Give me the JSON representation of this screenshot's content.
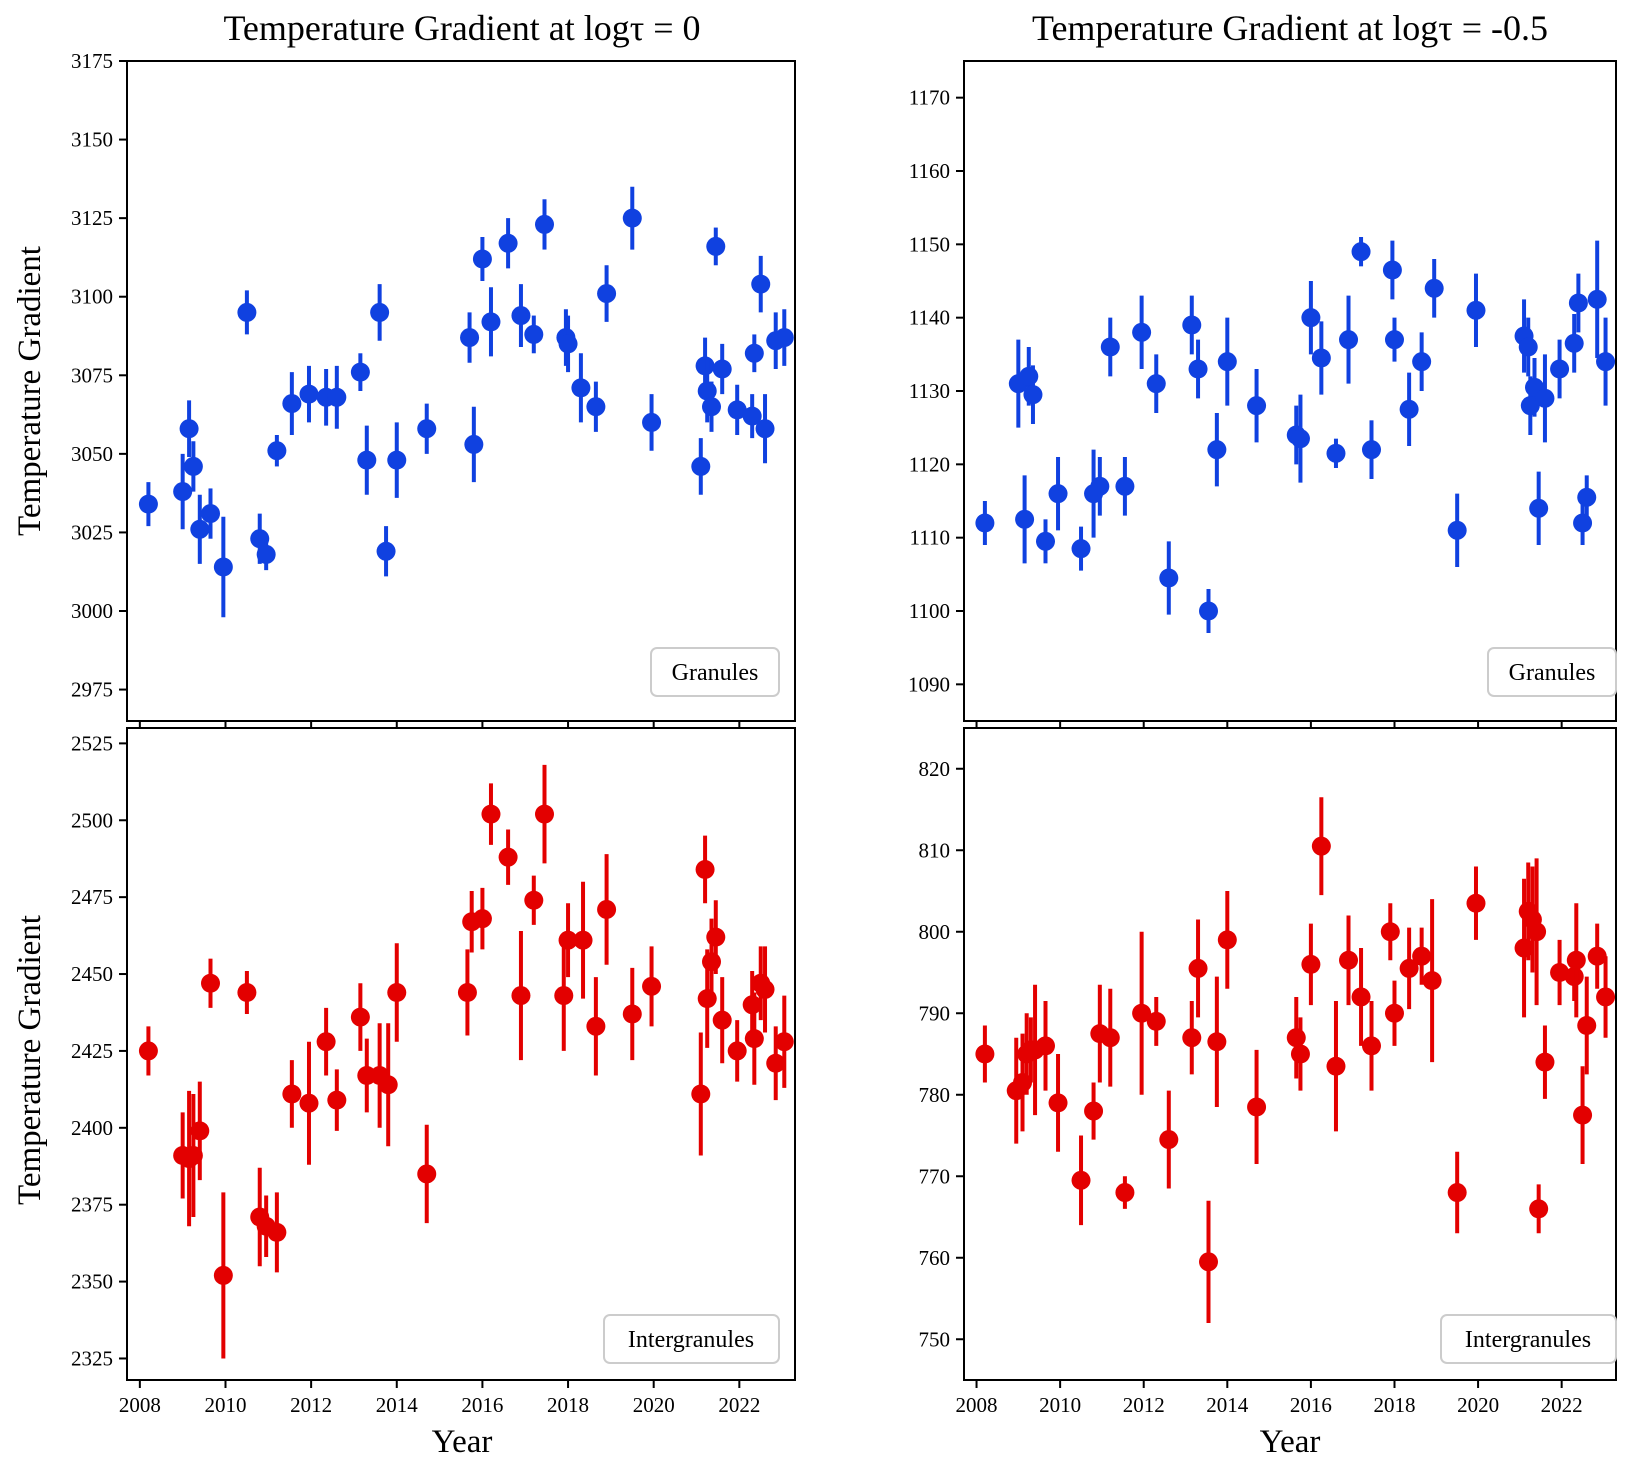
{
  "chart_data": [
    {
      "panel": "top-left",
      "type": "scatter",
      "title": "Temperature Gradient at logτ = 0",
      "xlabel": "",
      "ylabel": "Temperature Gradient",
      "xlim": [
        2007.7,
        2023.3
      ],
      "ylim": [
        2965,
        3175
      ],
      "xticks": [
        2008,
        2010,
        2012,
        2014,
        2016,
        2018,
        2020,
        2022
      ],
      "xtick_labels": [],
      "yticks": [
        2975,
        3000,
        3025,
        3050,
        3075,
        3100,
        3125,
        3150,
        3175
      ],
      "legend": "Granules",
      "legend_position": "lower right",
      "color": "#1041e0",
      "grid": false,
      "points": [
        {
          "x": 2008.2,
          "y": 3034,
          "err": 7
        },
        {
          "x": 2009.0,
          "y": 3038,
          "err": 12
        },
        {
          "x": 2009.15,
          "y": 3058,
          "err": 9
        },
        {
          "x": 2009.25,
          "y": 3046,
          "err": 8
        },
        {
          "x": 2009.4,
          "y": 3026,
          "err": 11
        },
        {
          "x": 2009.65,
          "y": 3031,
          "err": 8
        },
        {
          "x": 2009.95,
          "y": 3014,
          "err": 16
        },
        {
          "x": 2010.5,
          "y": 3095,
          "err": 7
        },
        {
          "x": 2010.8,
          "y": 3023,
          "err": 8
        },
        {
          "x": 2010.95,
          "y": 3018,
          "err": 5
        },
        {
          "x": 2011.2,
          "y": 3051,
          "err": 5
        },
        {
          "x": 2011.55,
          "y": 3066,
          "err": 10
        },
        {
          "x": 2011.95,
          "y": 3069,
          "err": 9
        },
        {
          "x": 2012.35,
          "y": 3068,
          "err": 9
        },
        {
          "x": 2012.6,
          "y": 3068,
          "err": 10
        },
        {
          "x": 2013.15,
          "y": 3076,
          "err": 6
        },
        {
          "x": 2013.3,
          "y": 3048,
          "err": 11
        },
        {
          "x": 2013.6,
          "y": 3095,
          "err": 9
        },
        {
          "x": 2013.75,
          "y": 3019,
          "err": 8
        },
        {
          "x": 2014.0,
          "y": 3048,
          "err": 12
        },
        {
          "x": 2014.7,
          "y": 3058,
          "err": 8
        },
        {
          "x": 2015.7,
          "y": 3087,
          "err": 8
        },
        {
          "x": 2015.8,
          "y": 3053,
          "err": 12
        },
        {
          "x": 2016.0,
          "y": 3112,
          "err": 7
        },
        {
          "x": 2016.2,
          "y": 3092,
          "err": 11
        },
        {
          "x": 2016.6,
          "y": 3117,
          "err": 8
        },
        {
          "x": 2016.9,
          "y": 3094,
          "err": 10
        },
        {
          "x": 2017.2,
          "y": 3088,
          "err": 6
        },
        {
          "x": 2017.45,
          "y": 3123,
          "err": 8
        },
        {
          "x": 2017.95,
          "y": 3087,
          "err": 9
        },
        {
          "x": 2018.0,
          "y": 3085,
          "err": 9
        },
        {
          "x": 2018.3,
          "y": 3071,
          "err": 11
        },
        {
          "x": 2018.65,
          "y": 3065,
          "err": 8
        },
        {
          "x": 2018.9,
          "y": 3101,
          "err": 9
        },
        {
          "x": 2019.5,
          "y": 3125,
          "err": 10
        },
        {
          "x": 2019.95,
          "y": 3060,
          "err": 9
        },
        {
          "x": 2021.1,
          "y": 3046,
          "err": 9
        },
        {
          "x": 2021.2,
          "y": 3078,
          "err": 9
        },
        {
          "x": 2021.25,
          "y": 3070,
          "err": 10
        },
        {
          "x": 2021.35,
          "y": 3065,
          "err": 8
        },
        {
          "x": 2021.45,
          "y": 3116,
          "err": 6
        },
        {
          "x": 2021.6,
          "y": 3077,
          "err": 8
        },
        {
          "x": 2021.95,
          "y": 3064,
          "err": 8
        },
        {
          "x": 2022.3,
          "y": 3062,
          "err": 7
        },
        {
          "x": 2022.35,
          "y": 3082,
          "err": 6
        },
        {
          "x": 2022.5,
          "y": 3104,
          "err": 9
        },
        {
          "x": 2022.6,
          "y": 3058,
          "err": 11
        },
        {
          "x": 2022.85,
          "y": 3086,
          "err": 9
        },
        {
          "x": 2023.05,
          "y": 3087,
          "err": 9
        }
      ]
    },
    {
      "panel": "top-right",
      "type": "scatter",
      "title": "Temperature Gradient at logτ = -0.5",
      "xlabel": "",
      "ylabel": "",
      "xlim": [
        2007.7,
        2023.3
      ],
      "ylim": [
        1085,
        1175
      ],
      "xticks": [
        2008,
        2010,
        2012,
        2014,
        2016,
        2018,
        2020,
        2022
      ],
      "xtick_labels": [],
      "yticks": [
        1090,
        1100,
        1110,
        1120,
        1130,
        1140,
        1150,
        1160,
        1170
      ],
      "legend": "Granules",
      "legend_position": "lower right",
      "color": "#1041e0",
      "grid": false,
      "points": [
        {
          "x": 2008.2,
          "y": 1112,
          "err": 3
        },
        {
          "x": 2009.0,
          "y": 1131,
          "err": 6
        },
        {
          "x": 2009.15,
          "y": 1112.5,
          "err": 6
        },
        {
          "x": 2009.25,
          "y": 1132,
          "err": 4
        },
        {
          "x": 2009.35,
          "y": 1129.5,
          "err": 4
        },
        {
          "x": 2009.65,
          "y": 1109.5,
          "err": 3
        },
        {
          "x": 2009.95,
          "y": 1116,
          "err": 5
        },
        {
          "x": 2010.5,
          "y": 1108.5,
          "err": 3
        },
        {
          "x": 2010.8,
          "y": 1116,
          "err": 6
        },
        {
          "x": 2010.95,
          "y": 1117,
          "err": 4
        },
        {
          "x": 2011.2,
          "y": 1136,
          "err": 4
        },
        {
          "x": 2011.55,
          "y": 1117,
          "err": 4
        },
        {
          "x": 2011.95,
          "y": 1138,
          "err": 5
        },
        {
          "x": 2012.3,
          "y": 1131,
          "err": 4
        },
        {
          "x": 2012.6,
          "y": 1104.5,
          "err": 5
        },
        {
          "x": 2013.15,
          "y": 1139,
          "err": 4
        },
        {
          "x": 2013.3,
          "y": 1133,
          "err": 4
        },
        {
          "x": 2013.55,
          "y": 1100,
          "err": 3
        },
        {
          "x": 2013.75,
          "y": 1122,
          "err": 5
        },
        {
          "x": 2014.0,
          "y": 1134,
          "err": 6
        },
        {
          "x": 2014.7,
          "y": 1128,
          "err": 5
        },
        {
          "x": 2015.65,
          "y": 1124,
          "err": 4
        },
        {
          "x": 2015.75,
          "y": 1123.5,
          "err": 6
        },
        {
          "x": 2016.0,
          "y": 1140,
          "err": 5
        },
        {
          "x": 2016.25,
          "y": 1134.5,
          "err": 5
        },
        {
          "x": 2016.6,
          "y": 1121.5,
          "err": 2
        },
        {
          "x": 2016.9,
          "y": 1137,
          "err": 6
        },
        {
          "x": 2017.2,
          "y": 1149,
          "err": 2
        },
        {
          "x": 2017.45,
          "y": 1122,
          "err": 4
        },
        {
          "x": 2017.95,
          "y": 1146.5,
          "err": 4
        },
        {
          "x": 2018.0,
          "y": 1137,
          "err": 3
        },
        {
          "x": 2018.35,
          "y": 1127.5,
          "err": 5
        },
        {
          "x": 2018.65,
          "y": 1134,
          "err": 4
        },
        {
          "x": 2018.95,
          "y": 1144,
          "err": 4
        },
        {
          "x": 2019.5,
          "y": 1111,
          "err": 5
        },
        {
          "x": 2019.95,
          "y": 1141,
          "err": 5
        },
        {
          "x": 2021.1,
          "y": 1137.5,
          "err": 5
        },
        {
          "x": 2021.2,
          "y": 1136,
          "err": 4
        },
        {
          "x": 2021.25,
          "y": 1128,
          "err": 4
        },
        {
          "x": 2021.35,
          "y": 1130.5,
          "err": 4
        },
        {
          "x": 2021.45,
          "y": 1114,
          "err": 5
        },
        {
          "x": 2021.6,
          "y": 1129,
          "err": 6
        },
        {
          "x": 2021.95,
          "y": 1133,
          "err": 4
        },
        {
          "x": 2022.3,
          "y": 1136.5,
          "err": 4
        },
        {
          "x": 2022.4,
          "y": 1142,
          "err": 4
        },
        {
          "x": 2022.5,
          "y": 1112,
          "err": 3
        },
        {
          "x": 2022.6,
          "y": 1115.5,
          "err": 3
        },
        {
          "x": 2022.85,
          "y": 1142.5,
          "err": 8
        },
        {
          "x": 2023.05,
          "y": 1134,
          "err": 6
        }
      ]
    },
    {
      "panel": "bottom-left",
      "type": "scatter",
      "title": "",
      "xlabel": "Year",
      "ylabel": "Temperature Gradient",
      "xlim": [
        2007.7,
        2023.3
      ],
      "ylim": [
        2318,
        2530
      ],
      "xticks": [
        2008,
        2010,
        2012,
        2014,
        2016,
        2018,
        2020,
        2022
      ],
      "xtick_labels": [
        "2008",
        "2010",
        "2012",
        "2014",
        "2016",
        "2018",
        "2020",
        "2022"
      ],
      "yticks": [
        2325,
        2350,
        2375,
        2400,
        2425,
        2450,
        2475,
        2500,
        2525
      ],
      "legend": "Intergranules",
      "legend_position": "lower right",
      "color": "#e30000",
      "grid": false,
      "points": [
        {
          "x": 2008.2,
          "y": 2425,
          "err": 8
        },
        {
          "x": 2009.0,
          "y": 2391,
          "err": 14
        },
        {
          "x": 2009.15,
          "y": 2390,
          "err": 22
        },
        {
          "x": 2009.25,
          "y": 2391,
          "err": 20
        },
        {
          "x": 2009.4,
          "y": 2399,
          "err": 16
        },
        {
          "x": 2009.65,
          "y": 2447,
          "err": 8
        },
        {
          "x": 2009.95,
          "y": 2352,
          "err": 27
        },
        {
          "x": 2010.5,
          "y": 2444,
          "err": 7
        },
        {
          "x": 2010.8,
          "y": 2371,
          "err": 16
        },
        {
          "x": 2010.95,
          "y": 2368,
          "err": 10
        },
        {
          "x": 2011.2,
          "y": 2366,
          "err": 13
        },
        {
          "x": 2011.55,
          "y": 2411,
          "err": 11
        },
        {
          "x": 2011.95,
          "y": 2408,
          "err": 20
        },
        {
          "x": 2012.35,
          "y": 2428,
          "err": 11
        },
        {
          "x": 2012.6,
          "y": 2409,
          "err": 10
        },
        {
          "x": 2013.15,
          "y": 2436,
          "err": 11
        },
        {
          "x": 2013.3,
          "y": 2417,
          "err": 12
        },
        {
          "x": 2013.6,
          "y": 2417,
          "err": 17
        },
        {
          "x": 2013.8,
          "y": 2414,
          "err": 20
        },
        {
          "x": 2014.0,
          "y": 2444,
          "err": 16
        },
        {
          "x": 2014.7,
          "y": 2385,
          "err": 16
        },
        {
          "x": 2015.65,
          "y": 2444,
          "err": 14
        },
        {
          "x": 2015.75,
          "y": 2467,
          "err": 10
        },
        {
          "x": 2016.0,
          "y": 2468,
          "err": 10
        },
        {
          "x": 2016.2,
          "y": 2502,
          "err": 10
        },
        {
          "x": 2016.6,
          "y": 2488,
          "err": 9
        },
        {
          "x": 2016.9,
          "y": 2443,
          "err": 21
        },
        {
          "x": 2017.2,
          "y": 2474,
          "err": 8
        },
        {
          "x": 2017.45,
          "y": 2502,
          "err": 16
        },
        {
          "x": 2017.9,
          "y": 2443,
          "err": 18
        },
        {
          "x": 2018.0,
          "y": 2461,
          "err": 12
        },
        {
          "x": 2018.35,
          "y": 2461,
          "err": 19
        },
        {
          "x": 2018.65,
          "y": 2433,
          "err": 16
        },
        {
          "x": 2018.9,
          "y": 2471,
          "err": 18
        },
        {
          "x": 2019.5,
          "y": 2437,
          "err": 15
        },
        {
          "x": 2019.95,
          "y": 2446,
          "err": 13
        },
        {
          "x": 2021.1,
          "y": 2411,
          "err": 20
        },
        {
          "x": 2021.2,
          "y": 2484,
          "err": 11
        },
        {
          "x": 2021.25,
          "y": 2442,
          "err": 16
        },
        {
          "x": 2021.35,
          "y": 2454,
          "err": 14
        },
        {
          "x": 2021.45,
          "y": 2462,
          "err": 12
        },
        {
          "x": 2021.6,
          "y": 2435,
          "err": 14
        },
        {
          "x": 2021.95,
          "y": 2425,
          "err": 10
        },
        {
          "x": 2022.3,
          "y": 2440,
          "err": 11
        },
        {
          "x": 2022.35,
          "y": 2429,
          "err": 15
        },
        {
          "x": 2022.5,
          "y": 2447,
          "err": 12
        },
        {
          "x": 2022.6,
          "y": 2445,
          "err": 14
        },
        {
          "x": 2022.85,
          "y": 2421,
          "err": 12
        },
        {
          "x": 2023.05,
          "y": 2428,
          "err": 15
        }
      ]
    },
    {
      "panel": "bottom-right",
      "type": "scatter",
      "title": "",
      "xlabel": "Year",
      "ylabel": "",
      "xlim": [
        2007.7,
        2023.3
      ],
      "ylim": [
        745,
        825
      ],
      "xticks": [
        2008,
        2010,
        2012,
        2014,
        2016,
        2018,
        2020,
        2022
      ],
      "xtick_labels": [
        "2008",
        "2010",
        "2012",
        "2014",
        "2016",
        "2018",
        "2020",
        "2022"
      ],
      "yticks": [
        750,
        760,
        770,
        780,
        790,
        800,
        810,
        820
      ],
      "legend": "Intergranules",
      "legend_position": "lower right",
      "color": "#e30000",
      "grid": false,
      "points": [
        {
          "x": 2008.2,
          "y": 785,
          "err": 3.5
        },
        {
          "x": 2008.95,
          "y": 780.5,
          "err": 6.5
        },
        {
          "x": 2009.1,
          "y": 781.5,
          "err": 6
        },
        {
          "x": 2009.2,
          "y": 785,
          "err": 5
        },
        {
          "x": 2009.3,
          "y": 785.5,
          "err": 4
        },
        {
          "x": 2009.4,
          "y": 785.5,
          "err": 8
        },
        {
          "x": 2009.65,
          "y": 786,
          "err": 5.5
        },
        {
          "x": 2009.95,
          "y": 779,
          "err": 6
        },
        {
          "x": 2010.5,
          "y": 769.5,
          "err": 5.5
        },
        {
          "x": 2010.8,
          "y": 778,
          "err": 3.5
        },
        {
          "x": 2010.95,
          "y": 787.5,
          "err": 6
        },
        {
          "x": 2011.2,
          "y": 787,
          "err": 6
        },
        {
          "x": 2011.55,
          "y": 768,
          "err": 2
        },
        {
          "x": 2011.95,
          "y": 790,
          "err": 10
        },
        {
          "x": 2012.3,
          "y": 789,
          "err": 3
        },
        {
          "x": 2012.6,
          "y": 774.5,
          "err": 6
        },
        {
          "x": 2013.15,
          "y": 787,
          "err": 4.5
        },
        {
          "x": 2013.3,
          "y": 795.5,
          "err": 6
        },
        {
          "x": 2013.55,
          "y": 759.5,
          "err": 7.5
        },
        {
          "x": 2013.75,
          "y": 786.5,
          "err": 8
        },
        {
          "x": 2014.0,
          "y": 799,
          "err": 6
        },
        {
          "x": 2014.7,
          "y": 778.5,
          "err": 7
        },
        {
          "x": 2015.65,
          "y": 787,
          "err": 5
        },
        {
          "x": 2015.75,
          "y": 785,
          "err": 4.5
        },
        {
          "x": 2016.0,
          "y": 796,
          "err": 5
        },
        {
          "x": 2016.25,
          "y": 810.5,
          "err": 6
        },
        {
          "x": 2016.6,
          "y": 783.5,
          "err": 8
        },
        {
          "x": 2016.9,
          "y": 796.5,
          "err": 5.5
        },
        {
          "x": 2017.2,
          "y": 792,
          "err": 6
        },
        {
          "x": 2017.45,
          "y": 786,
          "err": 5.5
        },
        {
          "x": 2017.9,
          "y": 800,
          "err": 3.5
        },
        {
          "x": 2018.0,
          "y": 790,
          "err": 4
        },
        {
          "x": 2018.35,
          "y": 795.5,
          "err": 5
        },
        {
          "x": 2018.65,
          "y": 797,
          "err": 3.5
        },
        {
          "x": 2018.9,
          "y": 794,
          "err": 10
        },
        {
          "x": 2019.5,
          "y": 768,
          "err": 5
        },
        {
          "x": 2019.95,
          "y": 803.5,
          "err": 4.5
        },
        {
          "x": 2021.1,
          "y": 798,
          "err": 8.5
        },
        {
          "x": 2021.2,
          "y": 802.5,
          "err": 6
        },
        {
          "x": 2021.3,
          "y": 801.5,
          "err": 6.5
        },
        {
          "x": 2021.4,
          "y": 800,
          "err": 9
        },
        {
          "x": 2021.45,
          "y": 766,
          "err": 3
        },
        {
          "x": 2021.6,
          "y": 784,
          "err": 4.5
        },
        {
          "x": 2021.95,
          "y": 795,
          "err": 4
        },
        {
          "x": 2022.3,
          "y": 794.5,
          "err": 3
        },
        {
          "x": 2022.35,
          "y": 796.5,
          "err": 7
        },
        {
          "x": 2022.5,
          "y": 777.5,
          "err": 6
        },
        {
          "x": 2022.6,
          "y": 788.5,
          "err": 6
        },
        {
          "x": 2022.85,
          "y": 797,
          "err": 4
        },
        {
          "x": 2023.05,
          "y": 792,
          "err": 5
        }
      ]
    }
  ]
}
